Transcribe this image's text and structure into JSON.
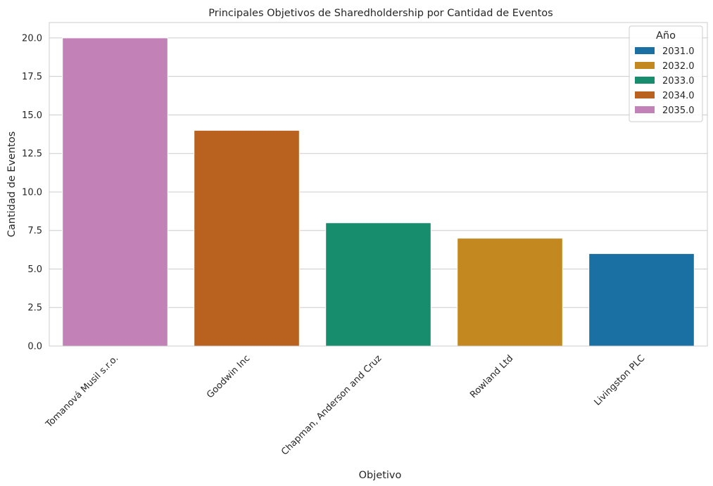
{
  "chart_data": {
    "type": "bar",
    "title": "Principales Objetivos de Sharedholdership por Cantidad de Eventos",
    "xlabel": "Objetivo",
    "ylabel": "Cantidad de Eventos",
    "ylim": [
      0,
      21
    ],
    "yticks": [
      0.0,
      2.5,
      5.0,
      7.5,
      10.0,
      12.5,
      15.0,
      17.5,
      20.0
    ],
    "ytick_labels": [
      "0.0",
      "2.5",
      "5.0",
      "7.5",
      "10.0",
      "12.5",
      "15.0",
      "17.5",
      "20.0"
    ],
    "grid": "horizontal",
    "categories": [
      "Tomanová Musil s.r.o.",
      "Goodwin Inc",
      "Chapman, Anderson and Cruz",
      "Rowland Ltd",
      "Livingston PLC"
    ],
    "values": [
      20,
      14,
      8,
      7,
      6
    ],
    "bar_years": [
      "2035.0",
      "2034.0",
      "2033.0",
      "2032.0",
      "2031.0"
    ],
    "legend": {
      "title": "Año",
      "placement": "top-right",
      "entries": [
        {
          "label": "2031.0",
          "color": "#1a6fa3"
        },
        {
          "label": "2032.0",
          "color": "#c38820"
        },
        {
          "label": "2033.0",
          "color": "#178d6d"
        },
        {
          "label": "2034.0",
          "color": "#b9611e"
        },
        {
          "label": "2035.0",
          "color": "#c282b7"
        }
      ]
    }
  }
}
